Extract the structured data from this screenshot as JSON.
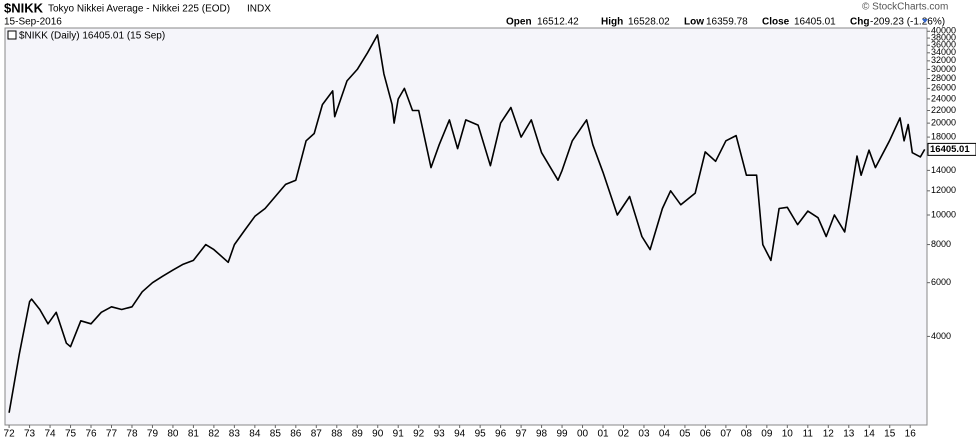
{
  "chart_data": {
    "type": "line",
    "symbol": "$NIKK",
    "title": "Tokyo Nikkei Average - Nikkei 225 (EOD)",
    "exchange": "INDX",
    "date": "15-Sep-2016",
    "open_label": "Open",
    "open": 16512.42,
    "high_label": "High",
    "high": 16528.02,
    "low_label": "Low",
    "low": 16359.78,
    "close_label": "Close",
    "close": 16405.01,
    "change_label": "Chg",
    "change": "-209.23 (-1.26%)",
    "credit": "© StockCharts.com",
    "log_scale": true,
    "xlim": [
      1971.8,
      2016.82
    ],
    "ylim": [
      2050,
      41000
    ],
    "yticks": [
      4000,
      6000,
      8000,
      10000,
      12000,
      14000,
      16000,
      18000,
      20000,
      22000,
      24000,
      26000,
      28000,
      30000,
      32000,
      34000,
      36000,
      38000,
      40000
    ],
    "xticks": [
      {
        "value": 1972,
        "label": "72"
      },
      {
        "value": 1973,
        "label": "73"
      },
      {
        "value": 1974,
        "label": "74"
      },
      {
        "value": 1975,
        "label": "75"
      },
      {
        "value": 1976,
        "label": "76"
      },
      {
        "value": 1977,
        "label": "77"
      },
      {
        "value": 1978,
        "label": "78"
      },
      {
        "value": 1979,
        "label": "79"
      },
      {
        "value": 1980,
        "label": "80"
      },
      {
        "value": 1981,
        "label": "81"
      },
      {
        "value": 1982,
        "label": "82"
      },
      {
        "value": 1983,
        "label": "83"
      },
      {
        "value": 1984,
        "label": "84"
      },
      {
        "value": 1985,
        "label": "85"
      },
      {
        "value": 1986,
        "label": "86"
      },
      {
        "value": 1987,
        "label": "87"
      },
      {
        "value": 1988,
        "label": "88"
      },
      {
        "value": 1989,
        "label": "89"
      },
      {
        "value": 1990,
        "label": "90"
      },
      {
        "value": 1991,
        "label": "91"
      },
      {
        "value": 1992,
        "label": "92"
      },
      {
        "value": 1993,
        "label": "93"
      },
      {
        "value": 1994,
        "label": "94"
      },
      {
        "value": 1995,
        "label": "95"
      },
      {
        "value": 1996,
        "label": "96"
      },
      {
        "value": 1997,
        "label": "97"
      },
      {
        "value": 1998,
        "label": "98"
      },
      {
        "value": 1999,
        "label": "99"
      },
      {
        "value": 2000,
        "label": "00"
      },
      {
        "value": 2001,
        "label": "01"
      },
      {
        "value": 2002,
        "label": "02"
      },
      {
        "value": 2003,
        "label": "03"
      },
      {
        "value": 2004,
        "label": "04"
      },
      {
        "value": 2005,
        "label": "05"
      },
      {
        "value": 2006,
        "label": "06"
      },
      {
        "value": 2007,
        "label": "07"
      },
      {
        "value": 2008,
        "label": "08"
      },
      {
        "value": 2009,
        "label": "09"
      },
      {
        "value": 2010,
        "label": "10"
      },
      {
        "value": 2011,
        "label": "11"
      },
      {
        "value": 2012,
        "label": "12"
      },
      {
        "value": 2013,
        "label": "13"
      },
      {
        "value": 2014,
        "label": "14"
      },
      {
        "value": 2015,
        "label": "15"
      },
      {
        "value": 2016,
        "label": "16"
      }
    ],
    "grid": false,
    "last_value": 16405.01,
    "series": [
      {
        "name": "$NIKK (Daily) 16405.01 (15 Sep)",
        "color": "#000000",
        "x": [
          1972.0,
          1972.5,
          1973.0,
          1973.1,
          1973.5,
          1973.9,
          1974.3,
          1974.8,
          1975.0,
          1975.5,
          1976.0,
          1976.5,
          1977.0,
          1977.5,
          1978.0,
          1978.5,
          1979.0,
          1979.5,
          1980.0,
          1980.5,
          1981.0,
          1981.6,
          1982.0,
          1982.7,
          1983.0,
          1983.5,
          1984.0,
          1984.5,
          1985.0,
          1985.5,
          1986.0,
          1986.5,
          1986.9,
          1987.3,
          1987.8,
          1987.9,
          1988.0,
          1988.5,
          1989.0,
          1989.5,
          1989.99,
          1990.3,
          1990.7,
          1990.8,
          1991.0,
          1991.3,
          1991.7,
          1992.0,
          1992.6,
          1993.0,
          1993.5,
          1993.9,
          1994.3,
          1994.9,
          1995.5,
          1996.0,
          1996.5,
          1997.0,
          1997.5,
          1998.0,
          1998.8,
          1999.0,
          1999.5,
          2000.2,
          2000.5,
          2001.0,
          2001.7,
          2002.3,
          2002.9,
          2003.3,
          2003.9,
          2004.3,
          2004.8,
          2005.5,
          2005.99,
          2006.5,
          2007.0,
          2007.5,
          2008.0,
          2008.5,
          2008.8,
          2009.2,
          2009.6,
          2010.0,
          2010.5,
          2011.0,
          2011.5,
          2011.9,
          2012.3,
          2012.8,
          2013.0,
          2013.4,
          2013.6,
          2013.99,
          2014.3,
          2014.99,
          2015.5,
          2015.7,
          2015.9,
          2016.1,
          2016.5,
          2016.71
        ],
        "values": [
          2250,
          3500,
          5200,
          5300,
          4900,
          4400,
          4800,
          3800,
          3700,
          4500,
          4400,
          4800,
          5000,
          4900,
          5000,
          5600,
          6000,
          6300,
          6600,
          6900,
          7100,
          8000,
          7700,
          7000,
          8000,
          8900,
          9900,
          10500,
          11500,
          12600,
          13000,
          17500,
          18500,
          23000,
          25500,
          21000,
          22000,
          27500,
          30000,
          34000,
          38900,
          29000,
          23000,
          20000,
          24000,
          26000,
          22000,
          22000,
          14300,
          17000,
          20500,
          16500,
          20500,
          19700,
          14500,
          20000,
          22500,
          18000,
          20500,
          16000,
          13000,
          14000,
          17500,
          20500,
          17000,
          13800,
          10000,
          11500,
          8500,
          7700,
          10500,
          12000,
          10800,
          11800,
          16100,
          15000,
          17500,
          18200,
          13500,
          13500,
          8000,
          7100,
          10500,
          10600,
          9300,
          10300,
          9800,
          8500,
          10000,
          8800,
          10600,
          15600,
          13500,
          16300,
          14300,
          17500,
          20800,
          17500,
          19800,
          16000,
          15500,
          16405.01
        ]
      }
    ]
  }
}
